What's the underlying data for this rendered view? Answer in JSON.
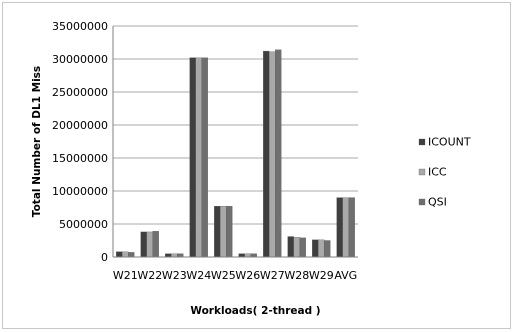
{
  "chart_data": {
    "type": "bar",
    "title": "",
    "xlabel": "Workloads( 2-thread )",
    "ylabel": "Total Number of DL1 Miss",
    "ylim": [
      0,
      35000000
    ],
    "yticks": [
      0,
      5000000,
      10000000,
      15000000,
      20000000,
      25000000,
      30000000,
      35000000
    ],
    "ytick_labels": [
      "0",
      "5000000",
      "10000000",
      "15000000",
      "20000000",
      "25000000",
      "30000000",
      "35000000"
    ],
    "grid": true,
    "legend_position": "right",
    "categories": [
      "W21",
      "W22",
      "W23",
      "W24",
      "W25",
      "W26",
      "W27",
      "W28",
      "W29",
      "AVG"
    ],
    "series": [
      {
        "name": "ICOUNT",
        "color": "#3f3f3f",
        "values": [
          800000,
          3800000,
          500000,
          30200000,
          7700000,
          500000,
          31200000,
          3100000,
          2600000,
          9000000
        ]
      },
      {
        "name": "ICC",
        "color": "#a9a9a9",
        "values": [
          800000,
          3800000,
          500000,
          30200000,
          7700000,
          500000,
          31100000,
          3000000,
          2600000,
          9000000
        ]
      },
      {
        "name": "QSI",
        "color": "#6f6f6f",
        "values": [
          700000,
          3900000,
          500000,
          30200000,
          7700000,
          500000,
          31400000,
          2900000,
          2500000,
          9000000
        ]
      }
    ]
  }
}
